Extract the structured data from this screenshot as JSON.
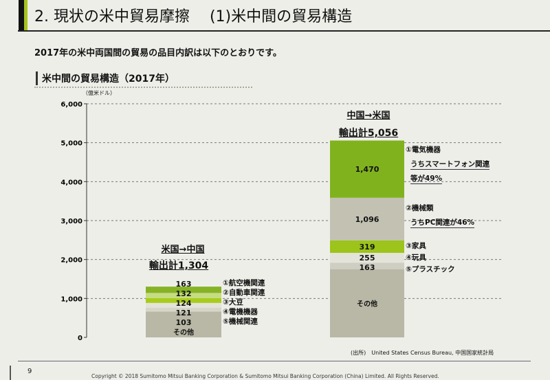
{
  "header": {
    "title": "2. 現状の米中貿易摩擦　 (1)米中間の貿易構造"
  },
  "intro": "2017年の米中両国間の貿易の品目内訳は以下のとおりです。",
  "section_title": "米中間の貿易構造（2017年）",
  "source": "(出所)　United States Census Bureau, 中国国家統計局",
  "page_number": "9",
  "copyright": "Copyright © 2018 Sumitomo Mitsui Banking Corporation & Sumitomo Mitsui Banking Corporation (China) Limited. All Rights Reserved.",
  "chart_data": {
    "type": "bar",
    "stacked": true,
    "ylabel": "（億米ドル）",
    "ylim": [
      0,
      6000
    ],
    "yticks": [
      "0",
      "1,000",
      "2,000",
      "3,000",
      "4,000",
      "5,000",
      "6,000"
    ],
    "grid": true,
    "bars": [
      {
        "title": "米国→中国",
        "total_label": "輸出計1,304",
        "total": 1304,
        "segments": [
          {
            "label": "その他",
            "value": 661,
            "color": "#b9b8a6"
          },
          {
            "label": "⑤機械関連",
            "value": 103,
            "value_label": "103",
            "color": "#d6d5c8"
          },
          {
            "label": "④電機機器",
            "value": 121,
            "value_label": "121",
            "color": "#e4e3da"
          },
          {
            "label": "③大豆",
            "value": 124,
            "value_label": "124",
            "color": "#a8cc1c"
          },
          {
            "label": "②自動車関連",
            "value": 132,
            "value_label": "132",
            "color": "#c6dc80"
          },
          {
            "label": "①航空機関連",
            "value": 163,
            "value_label": "163",
            "color": "#86b326"
          }
        ]
      },
      {
        "title": "中国→米国",
        "total_label": "輸出計5,056",
        "total": 5056,
        "segments": [
          {
            "label": "その他",
            "value": 1753,
            "color": "#b9b8a6"
          },
          {
            "label": "⑤プラスチック",
            "value": 163,
            "value_label": "163",
            "color": "#cfcec2"
          },
          {
            "label": "④玩具",
            "value": 255,
            "value_label": "255",
            "color": "#e4e3da"
          },
          {
            "label": "③家具",
            "value": 319,
            "value_label": "319",
            "color": "#9cc41a"
          },
          {
            "label": "②機械類",
            "value": 1096,
            "value_label": "1,096",
            "color": "#c2c1b2"
          },
          {
            "label": "①電気機器",
            "value": 1470,
            "value_label": "1,470",
            "color": "#80b21e"
          }
        ]
      }
    ],
    "annotations": {
      "us_china": [
        "①航空機関連",
        "②自動車関連",
        "③大豆",
        "④電機機器",
        "⑤機械関連"
      ],
      "china_us": [
        "①電気機器",
        "うちスマートフォン関連",
        "等が49%",
        "②機械類",
        "うちPC関連が46%",
        "③家具",
        "④玩具",
        "⑤プラスチック"
      ]
    },
    "other_label": "その他"
  }
}
